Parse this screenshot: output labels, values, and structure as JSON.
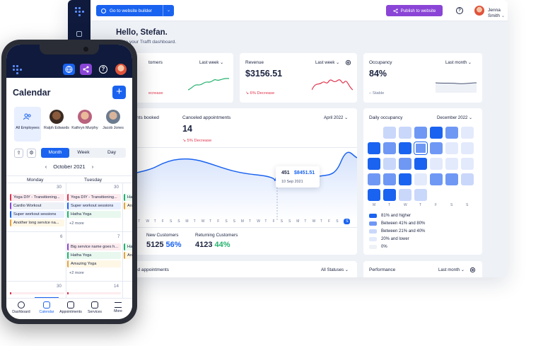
{
  "colors": {
    "primary": "#1a63f0",
    "purple": "#8a45d6",
    "navy": "#0f1a3c",
    "green": "#23b26d",
    "red": "#e0344d"
  },
  "desktop": {
    "header": {
      "website_builder": "Go to website builder",
      "publish": "Publish to website",
      "help_icon": "?",
      "user_name": "Jenna Smith"
    },
    "greeting": "Hello, Stefan.",
    "welcome": "me to your Trafft dashboard.",
    "customers": {
      "title": "tomers",
      "filter": "Last week",
      "delta": "ecrease"
    },
    "revenue": {
      "title": "Revenue",
      "filter": "Last week",
      "value": "$3156.51",
      "delta": "6% Decrease"
    },
    "occupancy": {
      "title": "Occupancy",
      "filter": "Last month",
      "value": "84%",
      "delta": "Stable"
    },
    "booked": {
      "title": "ments booked",
      "delta": "ase"
    },
    "canceled": {
      "title": "Canceled appointments",
      "value": "14",
      "delta": "5% Decrease"
    },
    "period": "April 2022",
    "chart": {
      "tooltip_count": "451",
      "tooltip_value": "$8451.51",
      "tooltip_date": "10 Sep 2021",
      "day_letters": [
        "M",
        "T",
        "W",
        "T",
        "F",
        "S",
        "S",
        "M",
        "T",
        "W",
        "T",
        "F",
        "S",
        "S",
        "M",
        "T",
        "W",
        "T",
        "F",
        "S",
        "S",
        "M",
        "T",
        "W",
        "T",
        "F",
        "S"
      ],
      "last_day": "S"
    },
    "new_customers": {
      "label": "New Customers",
      "value": "5125",
      "pct": "56%"
    },
    "returning": {
      "label": "Returning Customers",
      "value": "4123",
      "pct": "44%"
    },
    "daily": {
      "title": "Daily occupancy",
      "filter": "December 2022",
      "weekdays": [
        "M",
        "T",
        "W",
        "T",
        "F",
        "S",
        "S"
      ],
      "legend": [
        "81% and higher",
        "Between 41% and 80%",
        "Between 21% and 40%",
        "20% and lower",
        "0%"
      ]
    },
    "bottom": {
      "left_title": "oked appointments",
      "statuses": "All Statuses",
      "performance": "Performance",
      "perf_filter": "Last month"
    }
  },
  "phone": {
    "title": "Calendar",
    "plus": "+",
    "employees": [
      {
        "name": "All Employees"
      },
      {
        "name": "Ralph Edwards"
      },
      {
        "name": "Kathryn Murphy"
      },
      {
        "name": "Jacob Jones"
      }
    ],
    "views": [
      "Month",
      "Week",
      "Day"
    ],
    "active_view": "Month",
    "month": "October 2021",
    "prev": "‹",
    "next": "›",
    "days": [
      "Monday",
      "Tuesday"
    ],
    "week1": {
      "mon_num": "30",
      "tue_num": "30",
      "mon_events": [
        "Yoga DIY - Transitioning...",
        "Cardio Workout",
        "Super workout sessions",
        "Another long service na..."
      ],
      "tue_events": [
        "Yoga DIY - Transitioning...",
        "Super workout sessions",
        "Hatha Yoga"
      ],
      "tue_more": "+2 more",
      "right_clip": [
        "Ha",
        "An"
      ]
    },
    "week2": {
      "mon_num": "6",
      "tue_num": "7",
      "tue_events": [
        "Big service name goes h...",
        "Hatha Yoga",
        "Amazing Yoga"
      ],
      "tue_more": "+2 more",
      "right_clip": [
        "Ha",
        "An"
      ]
    },
    "week3": {
      "mon_num": "30",
      "tue_num": "14"
    },
    "tabs": [
      "Dashboard",
      "Calendar",
      "Appointments",
      "Services",
      "More"
    ],
    "active_tab": "Calendar"
  }
}
